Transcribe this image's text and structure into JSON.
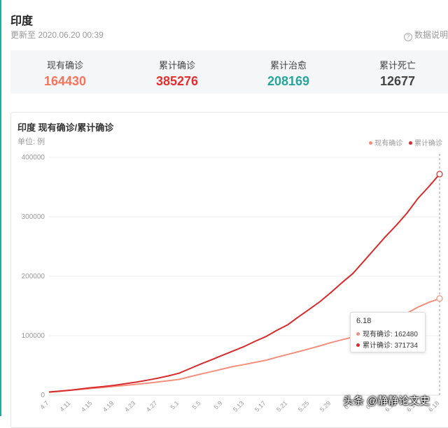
{
  "header": {
    "title": "印度",
    "update_time": "更新至 2020.06.20 00:39",
    "source_label": "数据说明"
  },
  "stats": [
    {
      "label": "现有确诊",
      "value": "164430",
      "color": "#f5735a"
    },
    {
      "label": "累计确诊",
      "value": "385276",
      "color": "#e0302f"
    },
    {
      "label": "累计治愈",
      "value": "208169",
      "color": "#28a59b"
    },
    {
      "label": "累计死亡",
      "value": "12677",
      "color": "#444444"
    }
  ],
  "chart_meta": {
    "title": "印度 现有确诊/累计确诊",
    "unit": "单位: 例"
  },
  "tooltip": {
    "date": "6.18",
    "row1": "现有确诊: 162480",
    "row2": "累计确诊: 371734"
  },
  "watermark": "头条 @静静论文史",
  "chart_data": {
    "type": "line",
    "ylim": [
      0,
      400000
    ],
    "yticks": [
      "0",
      "100000",
      "200000",
      "300000",
      "400000"
    ],
    "xticks": [
      "4.7",
      "4.11",
      "4.15",
      "4.19",
      "4.23",
      "4.27",
      "5.1",
      "5.5",
      "5.9",
      "5.13",
      "5.17",
      "5.21",
      "5.25",
      "5.29",
      "6.2",
      "6.6",
      "6.10",
      "6.14",
      "6.18"
    ],
    "x": [
      "4.7",
      "4.9",
      "4.11",
      "4.13",
      "4.15",
      "4.17",
      "4.19",
      "4.21",
      "4.23",
      "4.25",
      "4.27",
      "4.29",
      "5.1",
      "5.3",
      "5.5",
      "5.7",
      "5.9",
      "5.11",
      "5.13",
      "5.15",
      "5.17",
      "5.19",
      "5.21",
      "5.23",
      "5.25",
      "5.27",
      "5.29",
      "5.31",
      "6.2",
      "6.4",
      "6.6",
      "6.8",
      "6.10",
      "6.12",
      "6.14",
      "6.16",
      "6.18"
    ],
    "series": [
      {
        "name": "现有确诊",
        "color": "#f3907c",
        "values": [
          4800,
          6500,
          8200,
          9700,
          11400,
          13000,
          14700,
          16400,
          18100,
          20000,
          22000,
          24200,
          26500,
          31000,
          35500,
          39600,
          44000,
          48200,
          51500,
          55200,
          58700,
          63800,
          68500,
          73000,
          78000,
          83000,
          88500,
          93200,
          97600,
          103000,
          108000,
          115000,
          125000,
          138000,
          148000,
          156000,
          162480
        ]
      },
      {
        "name": "累计确诊",
        "color": "#d92b2b",
        "values": [
          5300,
          6800,
          8400,
          10600,
          12700,
          14400,
          16500,
          19100,
          21800,
          24900,
          28400,
          32300,
          36900,
          44700,
          52500,
          59700,
          67200,
          74500,
          81900,
          90600,
          98600,
          109000,
          118400,
          131700,
          144500,
          157600,
          172900,
          189200,
          204500,
          225000,
          245800,
          266300,
          285500,
          306400,
          330800,
          350600,
          371734
        ]
      }
    ]
  }
}
